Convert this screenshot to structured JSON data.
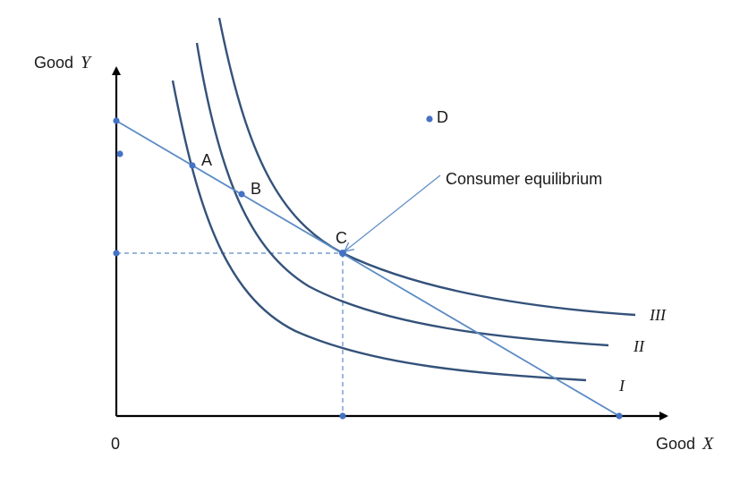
{
  "axes": {
    "y_title_prefix": "Good",
    "y_var": "Y",
    "x_title_prefix": "Good",
    "x_var": "X",
    "origin": "0"
  },
  "points": {
    "A": "A",
    "B": "B",
    "C": "C",
    "D": "D"
  },
  "annotation": {
    "text": "Consumer equilibrium"
  },
  "curves": {
    "I": "I",
    "II": "II",
    "III": "III"
  },
  "colors": {
    "curve": "#34527a",
    "budget_line": "#5b8bc4",
    "points": "#4472c4",
    "axis": "#000000"
  }
}
